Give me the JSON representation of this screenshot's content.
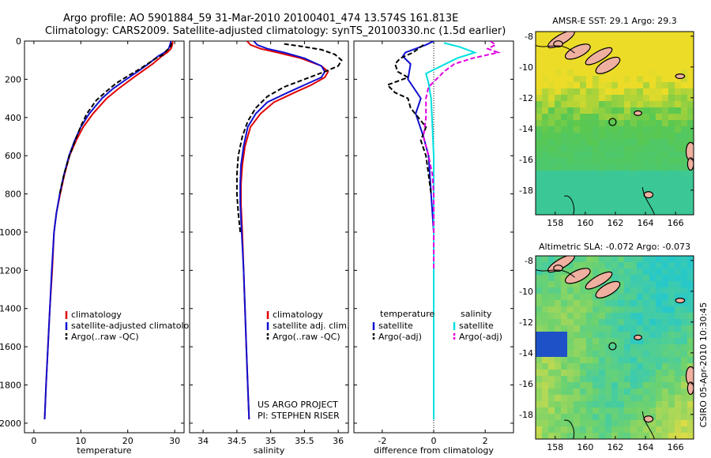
{
  "header": {
    "line1": "Argo profile: AO 5901884_59 31-Mar-2010 20100401_474 13.574S 161.813E",
    "line2": "Climatology: CARS2009. Satellite-adjusted climatology: synTS_20100330.nc (1.5d earlier)"
  },
  "colors": {
    "climatology": "#e00000",
    "satellite": "#1010d0",
    "argo": "#000000",
    "satellite_diff": "#00e0e0",
    "argo_sal_diff": "#e000e0"
  },
  "chart_data": [
    {
      "type": "line",
      "id": "temperature",
      "title": "",
      "xlabel": "temperature",
      "ylabel": "",
      "xlim": [
        -2,
        32
      ],
      "ylim": [
        2050,
        0
      ],
      "xticks": [
        "0",
        "10",
        "20",
        "30"
      ],
      "yticks": [
        "0",
        "200",
        "400",
        "600",
        "800",
        "1000",
        "1200",
        "1400",
        "1600",
        "1800",
        "2000"
      ],
      "legend": [
        "climatology",
        "satellite-adjusted climatolog",
        "Argo(..raw -QC)"
      ],
      "series": [
        {
          "name": "climatology",
          "color": "climatology",
          "dash": "",
          "points": [
            [
              29.6,
              0
            ],
            [
              29.5,
              20
            ],
            [
              29.2,
              40
            ],
            [
              28.4,
              60
            ],
            [
              27.2,
              80
            ],
            [
              25.3,
              120
            ],
            [
              23.0,
              160
            ],
            [
              20.7,
              200
            ],
            [
              18.0,
              250
            ],
            [
              15.5,
              300
            ],
            [
              12.6,
              380
            ],
            [
              10.5,
              450
            ],
            [
              9.0,
              520
            ],
            [
              7.6,
              600
            ],
            [
              6.5,
              700
            ],
            [
              5.6,
              800
            ],
            [
              4.8,
              900
            ],
            [
              4.3,
              1000
            ],
            [
              3.9,
              1200
            ],
            [
              3.4,
              1400
            ],
            [
              3.0,
              1600
            ],
            [
              2.6,
              1800
            ],
            [
              2.3,
              1980
            ]
          ]
        },
        {
          "name": "satellite",
          "color": "satellite",
          "dash": "",
          "points": [
            [
              29.2,
              0
            ],
            [
              29.0,
              20
            ],
            [
              28.7,
              40
            ],
            [
              27.8,
              60
            ],
            [
              26.4,
              80
            ],
            [
              24.4,
              120
            ],
            [
              22.1,
              160
            ],
            [
              19.7,
              200
            ],
            [
              16.8,
              250
            ],
            [
              14.5,
              300
            ],
            [
              11.8,
              380
            ],
            [
              10.0,
              450
            ],
            [
              8.7,
              520
            ],
            [
              7.5,
              600
            ],
            [
              6.4,
              700
            ],
            [
              5.5,
              800
            ],
            [
              4.8,
              900
            ],
            [
              4.3,
              1000
            ],
            [
              3.8,
              1200
            ],
            [
              3.4,
              1400
            ],
            [
              3.0,
              1600
            ],
            [
              2.6,
              1800
            ],
            [
              2.3,
              1980
            ]
          ]
        },
        {
          "name": "Argo",
          "color": "argo",
          "dash": "6,3",
          "points": [
            [
              29.3,
              10
            ],
            [
              29.1,
              30
            ],
            [
              28.3,
              50
            ],
            [
              27.6,
              70
            ],
            [
              26.0,
              90
            ],
            [
              24.2,
              120
            ],
            [
              22.3,
              150
            ],
            [
              20.2,
              180
            ],
            [
              17.6,
              220
            ],
            [
              15.6,
              260
            ],
            [
              13.3,
              310
            ],
            [
              11.3,
              380
            ],
            [
              10.1,
              440
            ],
            [
              8.8,
              520
            ],
            [
              7.6,
              600
            ],
            [
              6.4,
              700
            ],
            [
              5.5,
              800
            ]
          ]
        }
      ]
    },
    {
      "type": "line",
      "id": "salinity",
      "title": "",
      "xlabel": "salinity",
      "ylabel": "",
      "xlim": [
        33.8,
        36.15
      ],
      "ylim": [
        2050,
        0
      ],
      "xticks": [
        "34",
        "34.5",
        "35",
        "35.5",
        "36"
      ],
      "yticks": [],
      "legend": [
        "climatology",
        "satellite adj. clim.",
        "Argo(..raw -QC)"
      ],
      "annotation": [
        "US ARGO PROJECT",
        "PI: STEPHEN RISER"
      ],
      "series": [
        {
          "name": "climatology",
          "color": "climatology",
          "dash": "",
          "points": [
            [
              34.65,
              0
            ],
            [
              34.7,
              20
            ],
            [
              34.85,
              40
            ],
            [
              35.1,
              60
            ],
            [
              35.45,
              90
            ],
            [
              35.75,
              130
            ],
            [
              35.85,
              160
            ],
            [
              35.8,
              190
            ],
            [
              35.6,
              230
            ],
            [
              35.35,
              270
            ],
            [
              35.05,
              320
            ],
            [
              34.85,
              380
            ],
            [
              34.7,
              450
            ],
            [
              34.62,
              550
            ],
            [
              34.58,
              650
            ],
            [
              34.56,
              750
            ],
            [
              34.56,
              850
            ],
            [
              34.58,
              1000
            ],
            [
              34.6,
              1200
            ],
            [
              34.62,
              1400
            ],
            [
              34.64,
              1600
            ],
            [
              34.66,
              1800
            ],
            [
              34.68,
              1980
            ]
          ]
        },
        {
          "name": "satellite",
          "color": "satellite",
          "dash": "",
          "points": [
            [
              34.75,
              0
            ],
            [
              34.8,
              20
            ],
            [
              34.95,
              40
            ],
            [
              35.2,
              60
            ],
            [
              35.5,
              90
            ],
            [
              35.75,
              130
            ],
            [
              35.8,
              160
            ],
            [
              35.75,
              190
            ],
            [
              35.5,
              230
            ],
            [
              35.25,
              270
            ],
            [
              34.95,
              320
            ],
            [
              34.78,
              380
            ],
            [
              34.66,
              450
            ],
            [
              34.6,
              550
            ],
            [
              34.56,
              650
            ],
            [
              34.55,
              750
            ],
            [
              34.55,
              850
            ],
            [
              34.57,
              1000
            ],
            [
              34.6,
              1200
            ],
            [
              34.62,
              1400
            ],
            [
              34.64,
              1600
            ],
            [
              34.66,
              1800
            ],
            [
              34.68,
              1980
            ]
          ]
        },
        {
          "name": "Argo",
          "color": "argo",
          "dash": "6,3",
          "points": [
            [
              35.2,
              15
            ],
            [
              35.5,
              30
            ],
            [
              35.75,
              45
            ],
            [
              35.95,
              70
            ],
            [
              36.05,
              100
            ],
            [
              36.0,
              130
            ],
            [
              35.8,
              160
            ],
            [
              35.5,
              200
            ],
            [
              35.2,
              240
            ],
            [
              34.95,
              290
            ],
            [
              34.78,
              350
            ],
            [
              34.66,
              420
            ],
            [
              34.58,
              500
            ],
            [
              34.52,
              600
            ],
            [
              34.5,
              700
            ],
            [
              34.5,
              800
            ],
            [
              34.52,
              900
            ],
            [
              34.55,
              1000
            ]
          ]
        }
      ]
    },
    {
      "type": "line",
      "id": "difference",
      "title": "",
      "xlabel": "difference from climatology",
      "ylabel": "",
      "xlim": [
        -3.1,
        3.1
      ],
      "ylim": [
        2050,
        0
      ],
      "xticks": [
        "-2",
        "0",
        "2"
      ],
      "yticks": [],
      "legend_temperature_title": "temperature",
      "legend_salinity_title": "salinity",
      "legend_temperature": [
        "satellite",
        "Argo(-adj)"
      ],
      "legend_salinity": [
        "satellite",
        "Argo(-adj)"
      ],
      "series": [
        {
          "name": "temperature satellite",
          "color": "satellite",
          "dash": "",
          "points": [
            [
              0,
              0
            ],
            [
              -0.3,
              20
            ],
            [
              -1.1,
              60
            ],
            [
              -1.2,
              80
            ],
            [
              -0.9,
              120
            ],
            [
              -1.0,
              200
            ],
            [
              -0.5,
              300
            ],
            [
              -0.7,
              380
            ],
            [
              -0.4,
              500
            ],
            [
              -0.2,
              600
            ],
            [
              -0.1,
              800
            ],
            [
              0,
              1000
            ],
            [
              0,
              1200
            ],
            [
              0,
              1500
            ],
            [
              0,
              1800
            ],
            [
              0,
              1980
            ]
          ]
        },
        {
          "name": "temperature Argo",
          "color": "argo",
          "dash": "6,3",
          "points": [
            [
              -0.4,
              20
            ],
            [
              -0.8,
              60
            ],
            [
              -1.3,
              90
            ],
            [
              -1.5,
              120
            ],
            [
              -1.4,
              160
            ],
            [
              -1.0,
              190
            ],
            [
              -1.8,
              230
            ],
            [
              -1.5,
              270
            ],
            [
              -1.0,
              300
            ],
            [
              -0.9,
              350
            ],
            [
              -0.6,
              400
            ],
            [
              -0.3,
              450
            ],
            [
              -0.5,
              520
            ],
            [
              -0.3,
              600
            ],
            [
              -0.2,
              700
            ],
            [
              -0.1,
              800
            ]
          ]
        },
        {
          "name": "salinity satellite",
          "color": "satellite_diff",
          "dash": "",
          "points": [
            [
              0.4,
              10
            ],
            [
              1.0,
              30
            ],
            [
              1.6,
              60
            ],
            [
              0.9,
              90
            ],
            [
              0.3,
              130
            ],
            [
              -0.3,
              170
            ],
            [
              -0.2,
              220
            ],
            [
              -0.1,
              300
            ],
            [
              -0.05,
              450
            ],
            [
              0,
              600
            ],
            [
              0,
              800
            ],
            [
              0,
              1000
            ],
            [
              0,
              1300
            ],
            [
              0,
              1600
            ],
            [
              0,
              1980
            ]
          ]
        },
        {
          "name": "salinity Argo",
          "color": "argo_sal_diff",
          "dash": "6,3",
          "points": [
            [
              2.2,
              0
            ],
            [
              2.4,
              20
            ],
            [
              2.1,
              40
            ],
            [
              2.5,
              60
            ],
            [
              1.5,
              90
            ],
            [
              0.8,
              120
            ],
            [
              0.4,
              160
            ],
            [
              0.1,
              200
            ],
            [
              -0.2,
              240
            ],
            [
              -0.3,
              300
            ],
            [
              -0.3,
              400
            ],
            [
              -0.4,
              500
            ],
            [
              -0.2,
              600
            ],
            [
              -0.05,
              700
            ],
            [
              0,
              800
            ],
            [
              0,
              1000
            ],
            [
              0,
              1200
            ]
          ]
        }
      ]
    },
    {
      "type": "heatmap",
      "id": "sst_map",
      "title": "AMSR-E SST: 29.1 Argo: 29.3",
      "xticks": [
        "158",
        "160",
        "162",
        "164",
        "166"
      ],
      "yticks": [
        "-8",
        "-10",
        "-12",
        "-14",
        "-16",
        "-18"
      ],
      "xlim": [
        156.7,
        167.2
      ],
      "ylim": [
        -19.6,
        -7.7
      ],
      "marker": {
        "lon": 161.813,
        "lat": -13.574
      }
    },
    {
      "type": "heatmap",
      "id": "sla_map",
      "title": "Altimetric SLA: -0.072 Argo: -0.073",
      "xticks": [
        "158",
        "160",
        "162",
        "164",
        "166"
      ],
      "yticks": [
        "-8",
        "-10",
        "-12",
        "-14",
        "-16",
        "-18"
      ],
      "xlim": [
        156.7,
        167.2
      ],
      "ylim": [
        -19.6,
        -7.7
      ],
      "marker": {
        "lon": 161.813,
        "lat": -13.574
      }
    }
  ],
  "footer": {
    "stamp": "CSIRO 05-Apr-2010 10:30:45"
  }
}
